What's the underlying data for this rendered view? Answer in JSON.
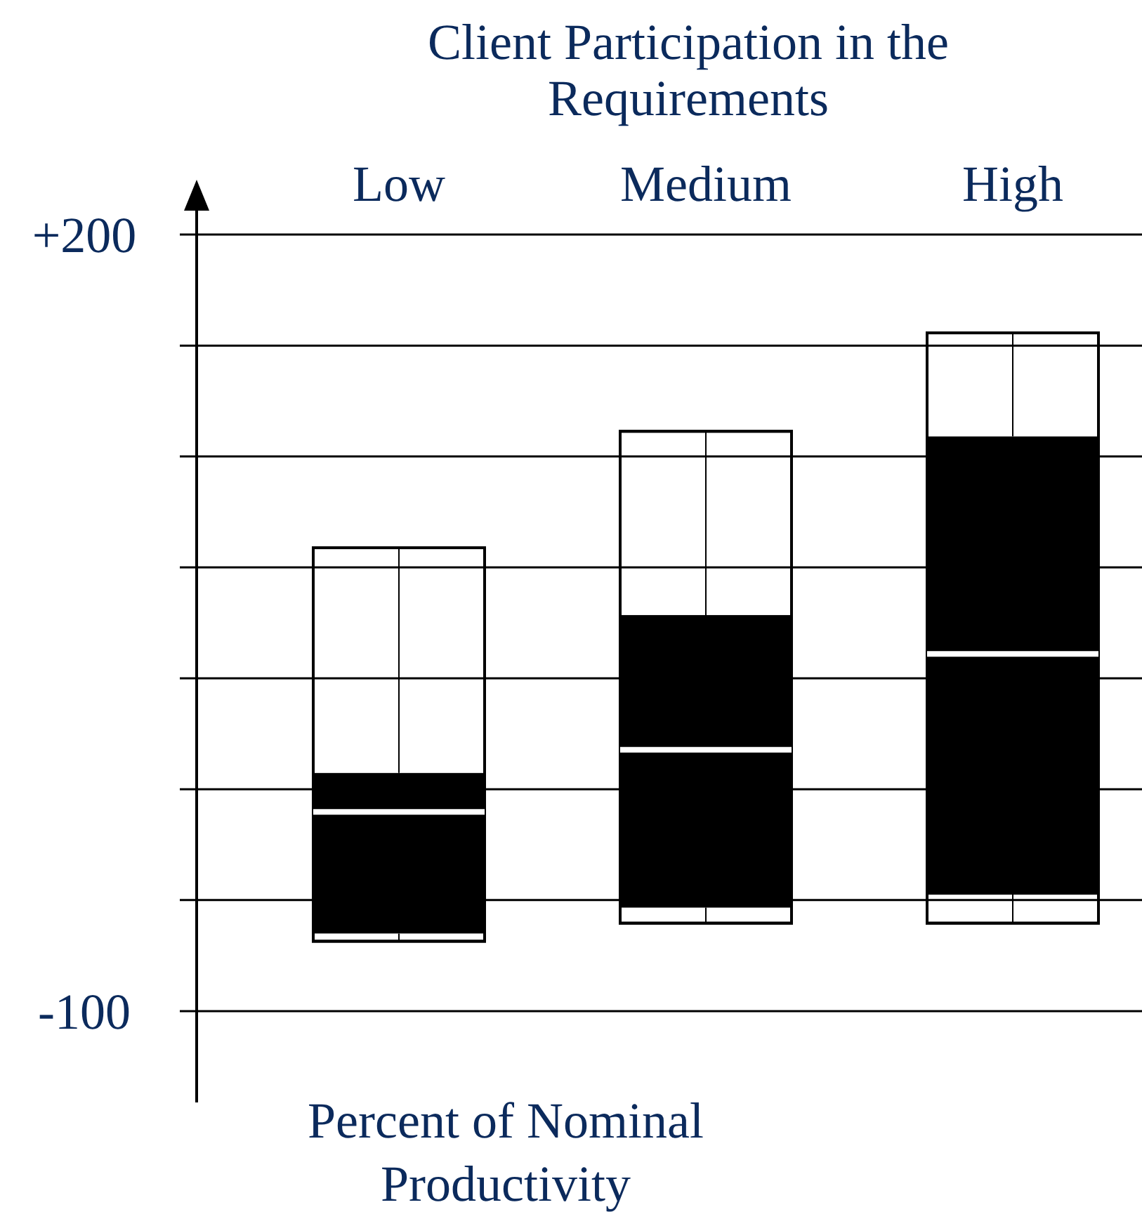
{
  "chart_data": {
    "type": "box",
    "title": "Client Participation in the Requirements",
    "annotations": [
      "Percent of Nominal Productivity"
    ],
    "categories": [
      "Low",
      "Medium",
      "High"
    ],
    "boxes": [
      {
        "low": -73,
        "q1": -70,
        "median": -23,
        "q3": -8,
        "high": 79
      },
      {
        "low": -66,
        "q1": -60,
        "median": 1,
        "q3": 53,
        "high": 124
      },
      {
        "low": -66,
        "q1": -55,
        "median": 38,
        "q3": 122,
        "high": 162
      }
    ],
    "ylim": [
      -100,
      200
    ],
    "yticks": [
      {
        "value": 200,
        "label": "+200"
      },
      {
        "value": 157.1,
        "label": null
      },
      {
        "value": 114.3,
        "label": null
      },
      {
        "value": 71.4,
        "label": null
      },
      {
        "value": 28.6,
        "label": null
      },
      {
        "value": -14.3,
        "label": null
      },
      {
        "value": -57.1,
        "label": null
      },
      -100
    ],
    "grid": "y",
    "color": "#000000"
  }
}
